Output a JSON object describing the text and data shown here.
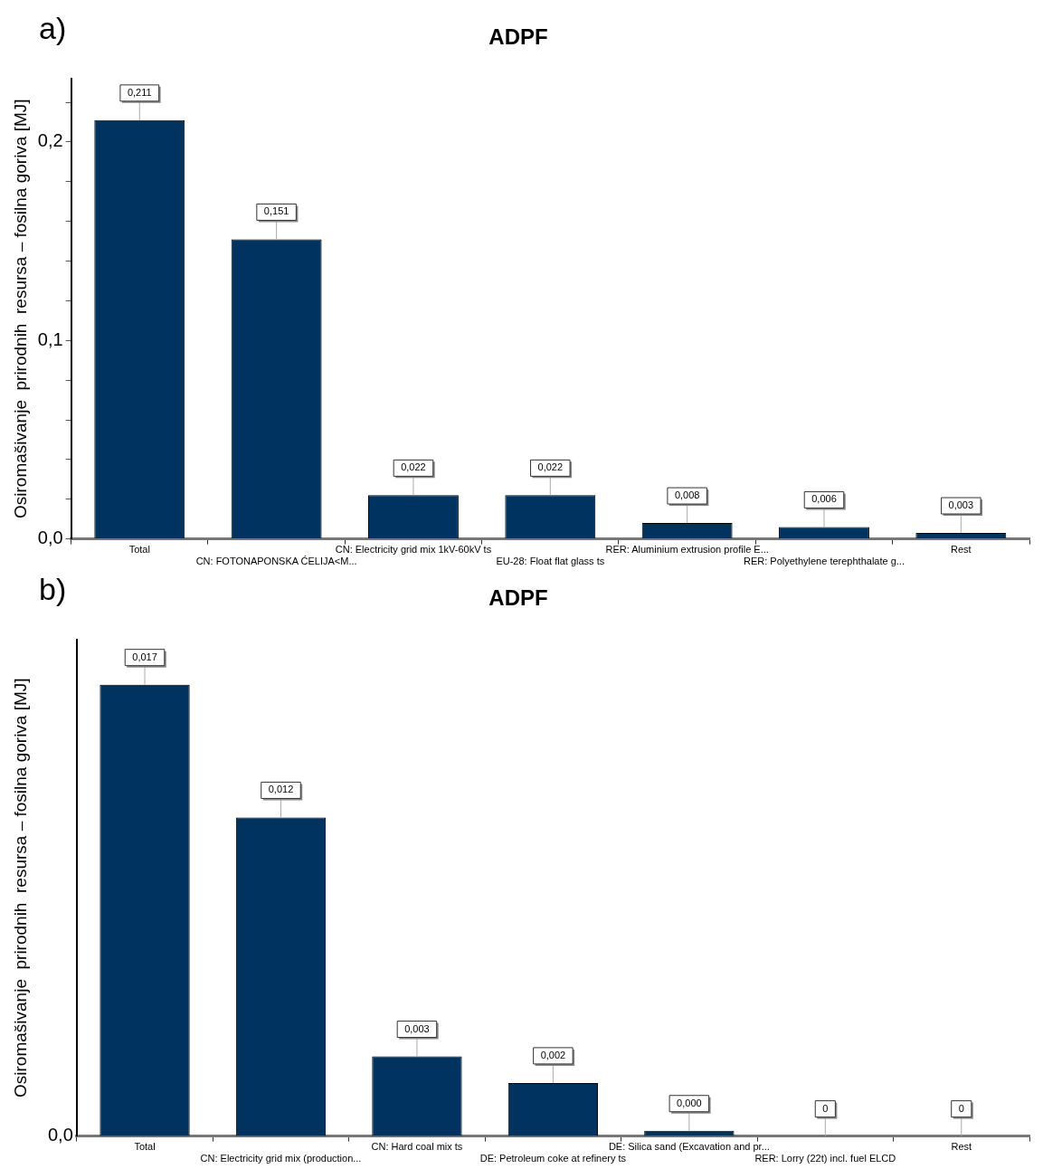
{
  "chart_data": [
    {
      "type": "bar",
      "title": "ADPF",
      "ylabel": "Osiromašivanje  prirodnih  resursa – fosilna goriva [MJ]",
      "annotations": [
        "a)"
      ],
      "categories": [
        "Total",
        "CN: FOTONAPONSKA ĆELIJA<M...",
        "CN: Electricity grid mix 1kV-60kV ts",
        "EU-28: Float flat glass ts",
        "RER: Aluminium extrusion profile E...",
        "RER: Polyethylene terephthalate g...",
        "Rest"
      ],
      "values": [
        0.211,
        0.151,
        0.022,
        0.022,
        0.008,
        0.006,
        0.003
      ],
      "value_labels": [
        "0,211",
        "0,151",
        "0,022",
        "0,022",
        "0,008",
        "0,006",
        "0,003"
      ],
      "color": "#00335f",
      "ylim": [
        0,
        0.232
      ],
      "yticks": [
        {
          "value": 0,
          "label": "0,0"
        },
        {
          "value": 0.02,
          "label": null
        },
        {
          "value": 0.04,
          "label": null
        },
        {
          "value": 0.06,
          "label": null
        },
        {
          "value": 0.08,
          "label": null
        },
        {
          "value": 0.1,
          "label": "0,1"
        },
        {
          "value": 0.12,
          "label": null
        },
        {
          "value": 0.14,
          "label": null
        },
        {
          "value": 0.16,
          "label": null
        },
        {
          "value": 0.18,
          "label": null
        },
        {
          "value": 0.2,
          "label": "0,2"
        },
        {
          "value": 0.22,
          "label": null
        }
      ],
      "grid": false,
      "legend": false
    },
    {
      "type": "bar",
      "title": "ADPF",
      "ylabel": "Osiromašivanje  prirodnih  resursa – fosilna goriva [MJ]",
      "annotations": [
        "b)",
        "0,0"
      ],
      "categories": [
        "Total",
        "CN: Electricity grid mix (production...",
        "CN: Hard coal mix ts",
        "DE: Petroleum coke at refinery ts",
        "DE: Silica sand (Excavation and pr...",
        "RER: Lorry (22t) incl. fuel ELCD",
        "Rest"
      ],
      "values": [
        0.017,
        0.012,
        0.003,
        0.002,
        0.0002,
        0,
        0
      ],
      "value_labels": [
        "0,017",
        "0,012",
        "0,003",
        "0,002",
        "0,000",
        "0",
        "0"
      ],
      "color": "#00335f",
      "ylim": [
        0,
        0.0187
      ],
      "grid": false,
      "legend": false
    }
  ]
}
